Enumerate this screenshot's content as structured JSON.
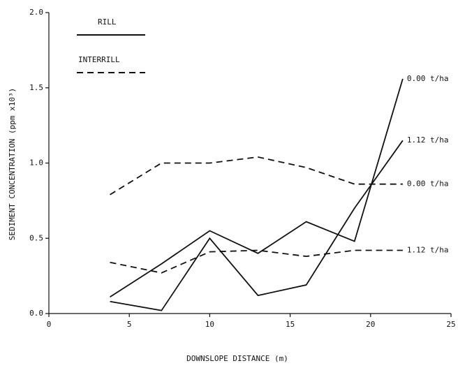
{
  "chart_data": {
    "type": "line",
    "xlabel": "DOWNSLOPE DISTANCE (m)",
    "ylabel": "SEDIMENT CONCENTRATION (ppm x10³)",
    "x": [
      3.8,
      7,
      10,
      13,
      16,
      19,
      22
    ],
    "xlim": [
      0,
      25
    ],
    "xticks": [
      0,
      5,
      10,
      15,
      20,
      25
    ],
    "ylim": [
      0,
      2
    ],
    "yticks": [
      {
        "value": 0,
        "label": "0.0"
      },
      0.5,
      {
        "value": 1,
        "label": "1.0"
      },
      1.5,
      {
        "value": 2,
        "label": "2.0"
      }
    ],
    "color": "#111111",
    "legend": [
      {
        "label": "RILL",
        "style": "solid"
      },
      {
        "label": "INTERRILL",
        "style": "dashed"
      }
    ],
    "series": [
      {
        "label": "0.00 t/ha",
        "style": "solid",
        "values": [
          0.11,
          0.33,
          0.55,
          0.4,
          0.61,
          0.48,
          1.56
        ]
      },
      {
        "label": "1.12 t/ha",
        "style": "solid",
        "values": [
          0.08,
          0.02,
          0.5,
          0.12,
          0.19,
          0.7,
          1.15
        ]
      },
      {
        "label": "0.00 t/ha",
        "style": "dashed",
        "values": [
          0.79,
          1.0,
          1.0,
          1.04,
          0.97,
          0.86,
          0.86
        ]
      },
      {
        "label": "1.12 t/ha",
        "style": "dashed",
        "values": [
          0.34,
          0.27,
          0.41,
          0.42,
          0.38,
          0.42,
          0.42
        ]
      }
    ]
  }
}
